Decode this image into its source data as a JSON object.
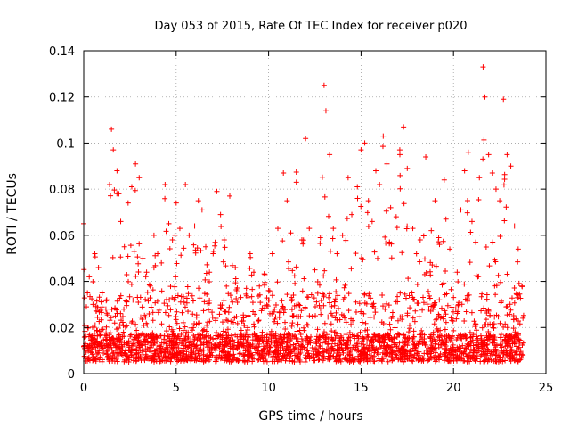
{
  "chart_data": {
    "type": "scatter",
    "title": "Day 053 of 2015, Rate Of TEC Index for receiver p020",
    "xlabel": "GPS time / hours",
    "ylabel": "ROTI / TECUs",
    "xlim": [
      0,
      25
    ],
    "ylim": [
      0,
      0.14
    ],
    "xticks": [
      0,
      5,
      10,
      15,
      20,
      25
    ],
    "yticks": [
      0,
      0.02,
      0.04,
      0.06,
      0.08,
      0.1,
      0.12,
      0.14
    ],
    "xtick_labels": [
      "0",
      "5",
      "10",
      "15",
      "20",
      "25"
    ],
    "ytick_labels": [
      "0",
      "0.02",
      "0.04",
      "0.06",
      "0.08",
      "0.1",
      "0.12",
      "0.14"
    ],
    "grid": true,
    "marker": "plus",
    "color": "#ff0000",
    "series": [
      {
        "name": "ROTI",
        "points": [
          [
            0.0,
            0.065
          ],
          [
            0.1,
            0.013
          ],
          [
            0.2,
            0.035
          ],
          [
            0.3,
            0.042
          ],
          [
            0.5,
            0.03
          ],
          [
            0.6,
            0.052
          ],
          [
            0.8,
            0.046
          ],
          [
            1.0,
            0.035
          ],
          [
            1.2,
            0.028
          ],
          [
            1.4,
            0.082
          ],
          [
            1.5,
            0.106
          ],
          [
            1.6,
            0.097
          ],
          [
            1.8,
            0.088
          ],
          [
            1.9,
            0.078
          ],
          [
            2.0,
            0.066
          ],
          [
            2.2,
            0.055
          ],
          [
            2.4,
            0.074
          ],
          [
            2.6,
            0.081
          ],
          [
            2.8,
            0.091
          ],
          [
            3.0,
            0.085
          ],
          [
            3.2,
            0.05
          ],
          [
            3.4,
            0.044
          ],
          [
            3.6,
            0.038
          ],
          [
            3.8,
            0.06
          ],
          [
            4.0,
            0.052
          ],
          [
            4.2,
            0.048
          ],
          [
            4.4,
            0.082
          ],
          [
            4.6,
            0.065
          ],
          [
            4.8,
            0.058
          ],
          [
            5.0,
            0.074
          ],
          [
            5.2,
            0.063
          ],
          [
            5.5,
            0.082
          ],
          [
            5.7,
            0.06
          ],
          [
            6.0,
            0.064
          ],
          [
            6.2,
            0.075
          ],
          [
            6.4,
            0.071
          ],
          [
            6.6,
            0.055
          ],
          [
            6.8,
            0.044
          ],
          [
            7.0,
            0.052
          ],
          [
            7.2,
            0.079
          ],
          [
            7.4,
            0.069
          ],
          [
            7.6,
            0.058
          ],
          [
            7.9,
            0.077
          ],
          [
            8.2,
            0.046
          ],
          [
            8.5,
            0.033
          ],
          [
            8.8,
            0.037
          ],
          [
            9.0,
            0.052
          ],
          [
            9.2,
            0.044
          ],
          [
            9.5,
            0.038
          ],
          [
            9.8,
            0.043
          ],
          [
            10.0,
            0.036
          ],
          [
            10.2,
            0.052
          ],
          [
            10.5,
            0.063
          ],
          [
            10.8,
            0.087
          ],
          [
            11.0,
            0.075
          ],
          [
            11.2,
            0.061
          ],
          [
            11.5,
            0.083
          ],
          [
            11.8,
            0.058
          ],
          [
            12.0,
            0.102
          ],
          [
            12.2,
            0.063
          ],
          [
            12.5,
            0.045
          ],
          [
            12.8,
            0.059
          ],
          [
            13.0,
            0.125
          ],
          [
            13.1,
            0.114
          ],
          [
            13.3,
            0.095
          ],
          [
            13.5,
            0.063
          ],
          [
            13.7,
            0.052
          ],
          [
            14.0,
            0.06
          ],
          [
            14.3,
            0.085
          ],
          [
            14.5,
            0.069
          ],
          [
            14.8,
            0.081
          ],
          [
            15.0,
            0.097
          ],
          [
            15.2,
            0.1
          ],
          [
            15.4,
            0.075
          ],
          [
            15.6,
            0.066
          ],
          [
            15.8,
            0.088
          ],
          [
            16.0,
            0.082
          ],
          [
            16.2,
            0.103
          ],
          [
            16.4,
            0.091
          ],
          [
            16.6,
            0.072
          ],
          [
            16.9,
            0.068
          ],
          [
            17.1,
            0.095
          ],
          [
            17.3,
            0.107
          ],
          [
            17.5,
            0.089
          ],
          [
            17.8,
            0.063
          ],
          [
            18.0,
            0.052
          ],
          [
            18.2,
            0.058
          ],
          [
            18.5,
            0.094
          ],
          [
            18.8,
            0.062
          ],
          [
            19.0,
            0.075
          ],
          [
            19.2,
            0.059
          ],
          [
            19.5,
            0.084
          ],
          [
            19.8,
            0.054
          ],
          [
            20.0,
            0.033
          ],
          [
            20.2,
            0.044
          ],
          [
            20.4,
            0.071
          ],
          [
            20.6,
            0.088
          ],
          [
            20.8,
            0.096
          ],
          [
            21.0,
            0.066
          ],
          [
            21.2,
            0.057
          ],
          [
            21.4,
            0.085
          ],
          [
            21.6,
            0.133
          ],
          [
            21.7,
            0.12
          ],
          [
            21.9,
            0.095
          ],
          [
            22.1,
            0.087
          ],
          [
            22.3,
            0.08
          ],
          [
            22.5,
            0.075
          ],
          [
            22.7,
            0.119
          ],
          [
            22.9,
            0.095
          ],
          [
            23.1,
            0.09
          ],
          [
            23.3,
            0.064
          ],
          [
            23.5,
            0.054
          ],
          [
            23.7,
            0.038
          ]
        ]
      }
    ],
    "noise_seed": 53
  }
}
